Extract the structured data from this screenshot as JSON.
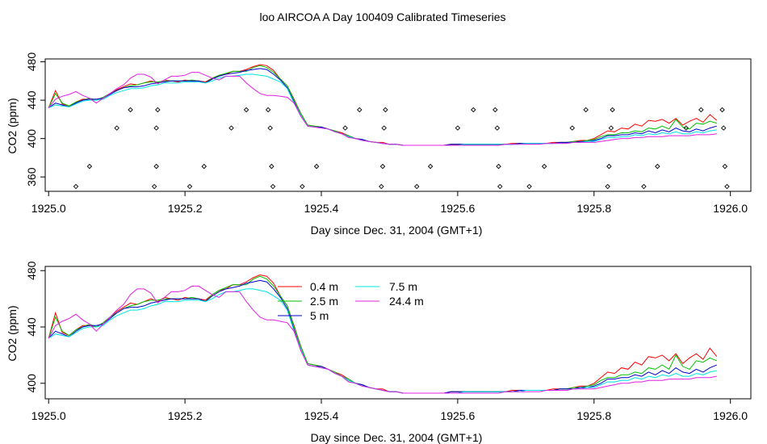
{
  "title": "loo AIRCOA A  Day 100409  Calibrated Timeseries",
  "colors": {
    "0.4 m": "#ff0000",
    "2.5 m": "#00c000",
    "5 m": "#0000cc",
    "7.5 m": "#00e5e5",
    "24.4 m": "#e020e0"
  },
  "chart_data": [
    {
      "type": "line",
      "xlabel": "Day since Dec. 31, 2004 (GMT+1)",
      "ylabel": "CO2 (ppm)",
      "xlim": [
        1924.995,
        1926.03
      ],
      "ylim": [
        345,
        483
      ],
      "xticks": [
        "1925.0",
        "1925.2",
        "1925.4",
        "1925.6",
        "1925.8",
        "1926.0"
      ],
      "yticks": [
        "360",
        "400",
        "440",
        "480"
      ],
      "series": [
        {
          "key": "0.4 m"
        },
        {
          "key": "2.5 m"
        },
        {
          "key": "5 m"
        },
        {
          "key": "7.5 m"
        },
        {
          "key": "24.4 m"
        }
      ],
      "flags": [
        [
          1925.04,
          350
        ],
        [
          1925.06,
          371
        ],
        [
          1925.1,
          411
        ],
        [
          1925.12,
          430
        ],
        [
          1925.155,
          350
        ],
        [
          1925.158,
          371
        ],
        [
          1925.158,
          411
        ],
        [
          1925.16,
          430
        ],
        [
          1925.207,
          350
        ],
        [
          1925.228,
          371
        ],
        [
          1925.268,
          411
        ],
        [
          1925.29,
          430
        ],
        [
          1925.322,
          430
        ],
        [
          1925.325,
          411
        ],
        [
          1925.327,
          371
        ],
        [
          1925.329,
          350
        ],
        [
          1925.372,
          350
        ],
        [
          1925.393,
          371
        ],
        [
          1925.435,
          411
        ],
        [
          1925.456,
          430
        ],
        [
          1925.488,
          350
        ],
        [
          1925.49,
          371
        ],
        [
          1925.492,
          411
        ],
        [
          1925.494,
          430
        ],
        [
          1925.54,
          350
        ],
        [
          1925.56,
          371
        ],
        [
          1925.6,
          411
        ],
        [
          1925.623,
          430
        ],
        [
          1925.655,
          430
        ],
        [
          1925.658,
          411
        ],
        [
          1925.66,
          371
        ],
        [
          1925.662,
          350
        ],
        [
          1925.705,
          350
        ],
        [
          1925.727,
          371
        ],
        [
          1925.768,
          411
        ],
        [
          1925.788,
          430
        ],
        [
          1925.82,
          350
        ],
        [
          1925.822,
          371
        ],
        [
          1925.825,
          411
        ],
        [
          1925.827,
          430
        ],
        [
          1925.873,
          350
        ],
        [
          1925.893,
          371
        ],
        [
          1925.935,
          411
        ],
        [
          1925.957,
          430
        ],
        [
          1925.988,
          430
        ],
        [
          1925.99,
          411
        ],
        [
          1925.992,
          371
        ],
        [
          1925.995,
          350
        ]
      ]
    },
    {
      "type": "line",
      "xlabel": "Day since Dec. 31, 2004 (GMT+1)",
      "ylabel": "CO2 (ppm)",
      "xlim": [
        1924.995,
        1926.03
      ],
      "ylim": [
        389,
        483
      ],
      "xticks": [
        "1925.0",
        "1925.2",
        "1925.4",
        "1925.6",
        "1925.8",
        "1926.0"
      ],
      "yticks": [
        "400",
        "440",
        "480"
      ],
      "legend": [
        "0.4 m",
        "2.5 m",
        "5 m",
        "7.5 m",
        "24.4 m"
      ],
      "series": [
        {
          "key": "0.4 m",
          "name": "0.4 m"
        },
        {
          "key": "2.5 m",
          "name": "2.5 m"
        },
        {
          "key": "5 m",
          "name": "5 m"
        },
        {
          "key": "7.5 m",
          "name": "7.5 m"
        },
        {
          "key": "24.4 m",
          "name": "24.4 m"
        }
      ]
    }
  ],
  "series_values": {
    "x": [
      1925.0,
      1925.01,
      1925.02,
      1925.03,
      1925.04,
      1925.05,
      1925.06,
      1925.07,
      1925.08,
      1925.09,
      1925.1,
      1925.11,
      1925.12,
      1925.13,
      1925.14,
      1925.15,
      1925.16,
      1925.17,
      1925.18,
      1925.19,
      1925.2,
      1925.21,
      1925.22,
      1925.23,
      1925.24,
      1925.25,
      1925.26,
      1925.27,
      1925.28,
      1925.29,
      1925.3,
      1925.31,
      1925.32,
      1925.33,
      1925.34,
      1925.35,
      1925.36,
      1925.37,
      1925.38,
      1925.39,
      1925.4,
      1925.41,
      1925.42,
      1925.43,
      1925.44,
      1925.45,
      1925.46,
      1925.47,
      1925.48,
      1925.49,
      1925.5,
      1925.51,
      1925.52,
      1925.53,
      1925.54,
      1925.55,
      1925.56,
      1925.57,
      1925.58,
      1925.59,
      1925.6,
      1925.61,
      1925.62,
      1925.63,
      1925.64,
      1925.65,
      1925.66,
      1925.67,
      1925.68,
      1925.69,
      1925.7,
      1925.71,
      1925.72,
      1925.73,
      1925.74,
      1925.75,
      1925.76,
      1925.77,
      1925.78,
      1925.79,
      1925.8,
      1925.81,
      1925.82,
      1925.83,
      1925.84,
      1925.85,
      1925.86,
      1925.87,
      1925.88,
      1925.89,
      1925.9,
      1925.91,
      1925.92,
      1925.93,
      1925.94,
      1925.95,
      1925.96,
      1925.97,
      1925.98
    ],
    "0.4 m": [
      432,
      450,
      436,
      434,
      438,
      441,
      441,
      440,
      443,
      447,
      451,
      454,
      457,
      456,
      458,
      460,
      458,
      461,
      460,
      459,
      461,
      460,
      460,
      459,
      463,
      466,
      467,
      470,
      470,
      472,
      475,
      477,
      476,
      471,
      462,
      455,
      441,
      426,
      414,
      413,
      412,
      410,
      408,
      406,
      403,
      400,
      399,
      397,
      396,
      396,
      394,
      394,
      393,
      393,
      393,
      393,
      393,
      393,
      393,
      394,
      394,
      394,
      394,
      394,
      394,
      394,
      394,
      394,
      395,
      395,
      395,
      395,
      395,
      395,
      396,
      396,
      396,
      397,
      398,
      398,
      400,
      404,
      408,
      407,
      411,
      410,
      415,
      413,
      419,
      418,
      420,
      416,
      421,
      414,
      418,
      421,
      417,
      425,
      419
    ],
    "2.5 m": [
      432,
      447,
      437,
      434,
      438,
      440,
      442,
      440,
      443,
      447,
      450,
      453,
      455,
      456,
      458,
      459,
      459,
      460,
      460,
      460,
      460,
      461,
      460,
      458,
      463,
      466,
      468,
      470,
      470,
      470,
      474,
      476,
      474,
      469,
      462,
      455,
      440,
      426,
      414,
      413,
      412,
      410,
      408,
      405,
      403,
      400,
      399,
      397,
      396,
      395,
      394,
      394,
      393,
      393,
      393,
      393,
      393,
      393,
      393,
      394,
      394,
      394,
      394,
      394,
      394,
      394,
      394,
      394,
      394,
      395,
      395,
      395,
      395,
      395,
      395,
      396,
      396,
      397,
      397,
      398,
      399,
      402,
      404,
      404,
      406,
      406,
      408,
      407,
      411,
      410,
      413,
      410,
      420,
      412,
      410,
      416,
      415,
      418,
      416
    ],
    "5 m": [
      432,
      437,
      435,
      433,
      437,
      440,
      441,
      441,
      442,
      446,
      450,
      453,
      454,
      454,
      455,
      457,
      458,
      459,
      460,
      460,
      460,
      460,
      460,
      458,
      462,
      465,
      467,
      468,
      469,
      471,
      472,
      473,
      472,
      467,
      461,
      453,
      438,
      424,
      413,
      412,
      412,
      410,
      407,
      405,
      402,
      400,
      399,
      397,
      396,
      395,
      394,
      394,
      393,
      393,
      393,
      393,
      393,
      393,
      393,
      394,
      394,
      394,
      394,
      394,
      394,
      394,
      394,
      394,
      394,
      395,
      395,
      395,
      395,
      395,
      395,
      396,
      396,
      396,
      397,
      397,
      398,
      400,
      403,
      403,
      404,
      404,
      406,
      405,
      408,
      406,
      409,
      407,
      411,
      408,
      407,
      410,
      408,
      411,
      413
    ],
    "7.5 m": [
      432,
      435,
      434,
      433,
      436,
      439,
      440,
      440,
      441,
      445,
      448,
      450,
      452,
      452,
      453,
      455,
      456,
      458,
      458,
      458,
      459,
      459,
      459,
      458,
      460,
      463,
      465,
      465,
      466,
      467,
      467,
      466,
      465,
      462,
      459,
      452,
      437,
      424,
      413,
      412,
      411,
      410,
      407,
      405,
      402,
      400,
      398,
      397,
      396,
      395,
      394,
      394,
      393,
      393,
      393,
      393,
      393,
      393,
      393,
      393,
      393,
      394,
      394,
      394,
      394,
      394,
      394,
      394,
      394,
      394,
      395,
      395,
      395,
      395,
      395,
      395,
      395,
      396,
      396,
      397,
      397,
      399,
      401,
      401,
      402,
      402,
      404,
      403,
      405,
      404,
      406,
      405,
      407,
      405,
      405,
      407,
      406,
      408,
      409
    ],
    "24.4 m": [
      432,
      441,
      444,
      446,
      449,
      445,
      442,
      437,
      442,
      447,
      452,
      456,
      463,
      467,
      467,
      464,
      457,
      461,
      465,
      465,
      466,
      469,
      469,
      466,
      463,
      461,
      465,
      465,
      465,
      458,
      452,
      447,
      445,
      445,
      444,
      443,
      437,
      423,
      413,
      412,
      411,
      410,
      407,
      405,
      401,
      400,
      398,
      397,
      396,
      395,
      394,
      394,
      393,
      393,
      393,
      393,
      393,
      393,
      393,
      393,
      393,
      393,
      393,
      393,
      393,
      393,
      393,
      394,
      394,
      394,
      394,
      394,
      394,
      395,
      395,
      395,
      395,
      396,
      396,
      396,
      396,
      397,
      398,
      399,
      400,
      400,
      401,
      401,
      402,
      402,
      402,
      403,
      403,
      403,
      403,
      404,
      404,
      404,
      405
    ]
  }
}
